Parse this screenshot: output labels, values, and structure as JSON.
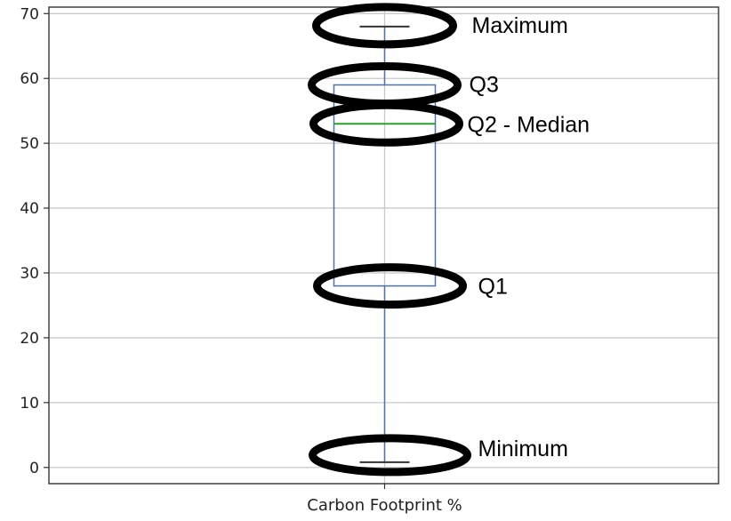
{
  "chart_data": {
    "type": "box",
    "categories": [
      "Carbon Footprint %"
    ],
    "box": {
      "min": 0.8,
      "q1": 28,
      "median": 53,
      "q3": 59,
      "max": 68
    },
    "ylim": [
      -2.5,
      71
    ],
    "yticks": [
      0,
      10,
      20,
      30,
      40,
      50,
      60,
      70
    ],
    "grid": true,
    "annotations": [
      {
        "label": "Maximum",
        "target": "max"
      },
      {
        "label": "Q3",
        "target": "q3"
      },
      {
        "label": "Q2 - Median",
        "target": "median"
      },
      {
        "label": "Q1",
        "target": "q1"
      },
      {
        "label": "Minimum",
        "target": "min"
      }
    ],
    "colors": {
      "box": "#4c72b0",
      "median": "#2ca02c",
      "whisker_cap": "#333333",
      "grid": "#c8c8c8",
      "annotation_ring": "#000000"
    }
  }
}
